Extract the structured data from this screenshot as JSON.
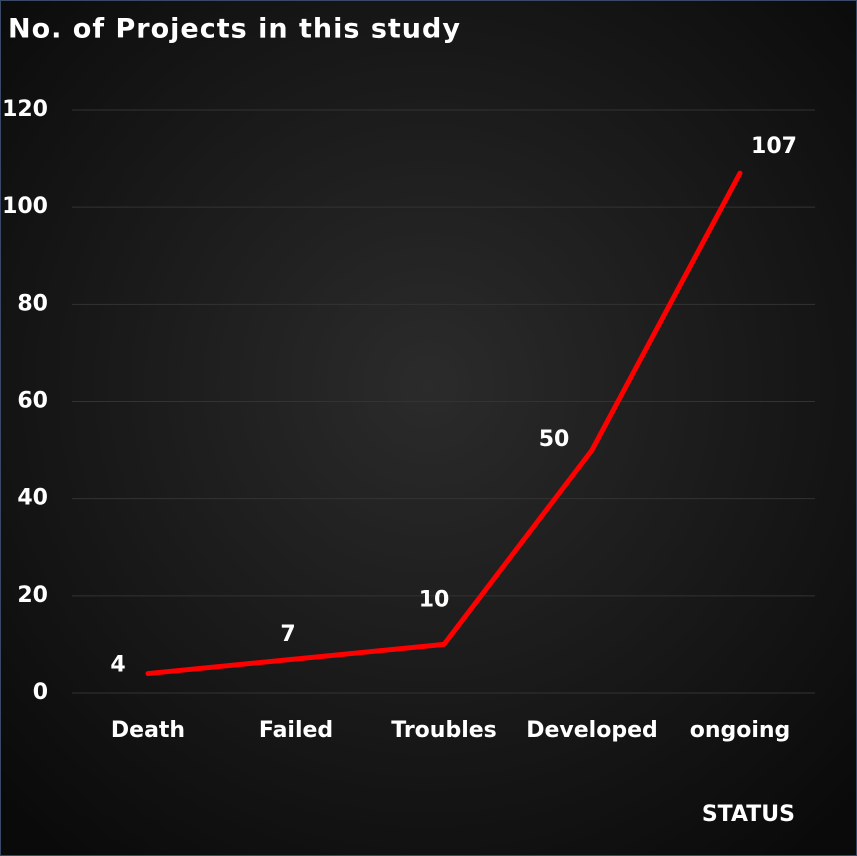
{
  "chart_data": {
    "type": "line",
    "title": "No. of Projects in this  study",
    "x_label": "STATUS",
    "categories": [
      "Death",
      "Failed",
      "Troubles",
      "Developed",
      "ongoing"
    ],
    "values": [
      4,
      7,
      10,
      50,
      107
    ],
    "color": "#ff0000",
    "ylim": [
      0,
      120
    ],
    "yticks": [
      0,
      20,
      40,
      60,
      80,
      100,
      120
    ],
    "grid": true
  }
}
